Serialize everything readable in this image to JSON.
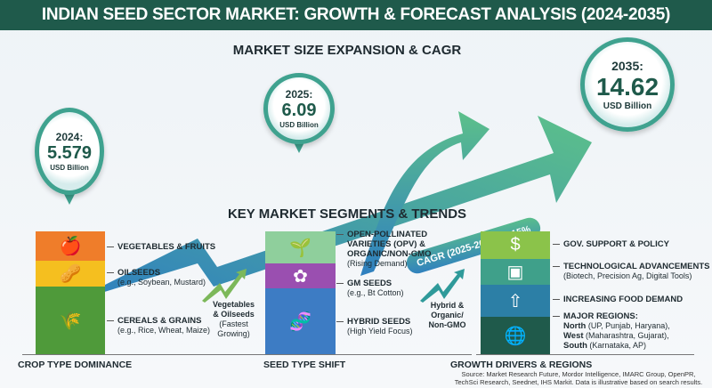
{
  "title": "INDIAN SEED SECTOR MARKET: GROWTH & FORECAST ANALYSIS (2024-2035)",
  "growth": {
    "heading": "MARKET SIZE EXPANSION & CAGR",
    "points": [
      {
        "year": "2024:",
        "value": "5.579",
        "unit": "USD Billion"
      },
      {
        "year": "2025:",
        "value": "6.09",
        "unit": "USD Billion"
      },
      {
        "year": "2035:",
        "value": "14.62",
        "unit": "USD Billion"
      }
    ],
    "cagr": "CAGR (2025-2035): 9.15%",
    "colors": {
      "arrow_start": "#2f7fc0",
      "arrow_end": "#5cc08a"
    }
  },
  "segments_heading": "KEY MARKET SEGMENTS & TRENDS",
  "crop": {
    "title": "CROP TYPE DOMINANCE",
    "items": [
      {
        "name": "VEGETABLES & FRUITS",
        "detail": "",
        "icon": "vegetables-icon",
        "color": "#ef7d2a"
      },
      {
        "name": "OILSEEDS",
        "detail": "(e.g., Soybean, Mustard)",
        "icon": "peanut-icon",
        "color": "#f5bf1f"
      },
      {
        "name": "CEREALS & GRAINS",
        "detail": "(e.g., Rice, Wheat, Maize)",
        "icon": "wheat-icon",
        "color": "#4f9a3a"
      }
    ],
    "trend": [
      "Vegetables",
      "& Oilseeds",
      "(Fastest",
      "Growing)"
    ]
  },
  "seed": {
    "title": "SEED TYPE SHIFT",
    "items": [
      {
        "name": "OPEN-POLLINATED VARIETIES (OPV) & ORGANIC/NON-GMO",
        "detail": "(Rising Demand)",
        "icon": "sprout-hand-icon",
        "color": "#8fcf9c"
      },
      {
        "name": "GM SEEDS",
        "detail": "(e.g., Bt Cotton)",
        "icon": "cotton-icon",
        "color": "#9a4fb0"
      },
      {
        "name": "HYBRID SEEDS",
        "detail": "(High Yield Focus)",
        "icon": "dna-icon",
        "color": "#3d7cc4"
      }
    ],
    "trend": [
      "Hybrid &",
      "Organic/",
      "Non-GMO"
    ]
  },
  "drivers": {
    "title": "GROWTH DRIVERS & REGIONS",
    "items": [
      {
        "name": "GOV. SUPPORT & POLICY",
        "detail": "",
        "icon": "money-hand-icon",
        "color": "#8bc34a"
      },
      {
        "name": "TECHNOLOGICAL ADVANCEMENTS",
        "detail": "(Biotech, Precision Ag, Digital Tools)",
        "icon": "chip-icon",
        "color": "#3fa08a"
      },
      {
        "name": "INCREASING FOOD DEMAND",
        "detail": "",
        "icon": "food-demand-icon",
        "color": "#2c7fa6"
      },
      {
        "name": "MAJOR REGIONS:",
        "detail": "",
        "icon": "globe-icon",
        "color": "#1f5a4b"
      }
    ],
    "regions": [
      {
        "name": "North",
        "states": " (UP, Punjab, Haryana),"
      },
      {
        "name": "West",
        "states": " (Maharashtra, Gujarat),"
      },
      {
        "name": "South",
        "states": " (Karnataka, AP)"
      }
    ]
  },
  "source": [
    "Source: Market Research Future, Mordor Intelligence, IMARC Group, OpenPR,",
    "TechSci Research, Seednet, IHS Markit. Data is illustrative based on search results."
  ]
}
